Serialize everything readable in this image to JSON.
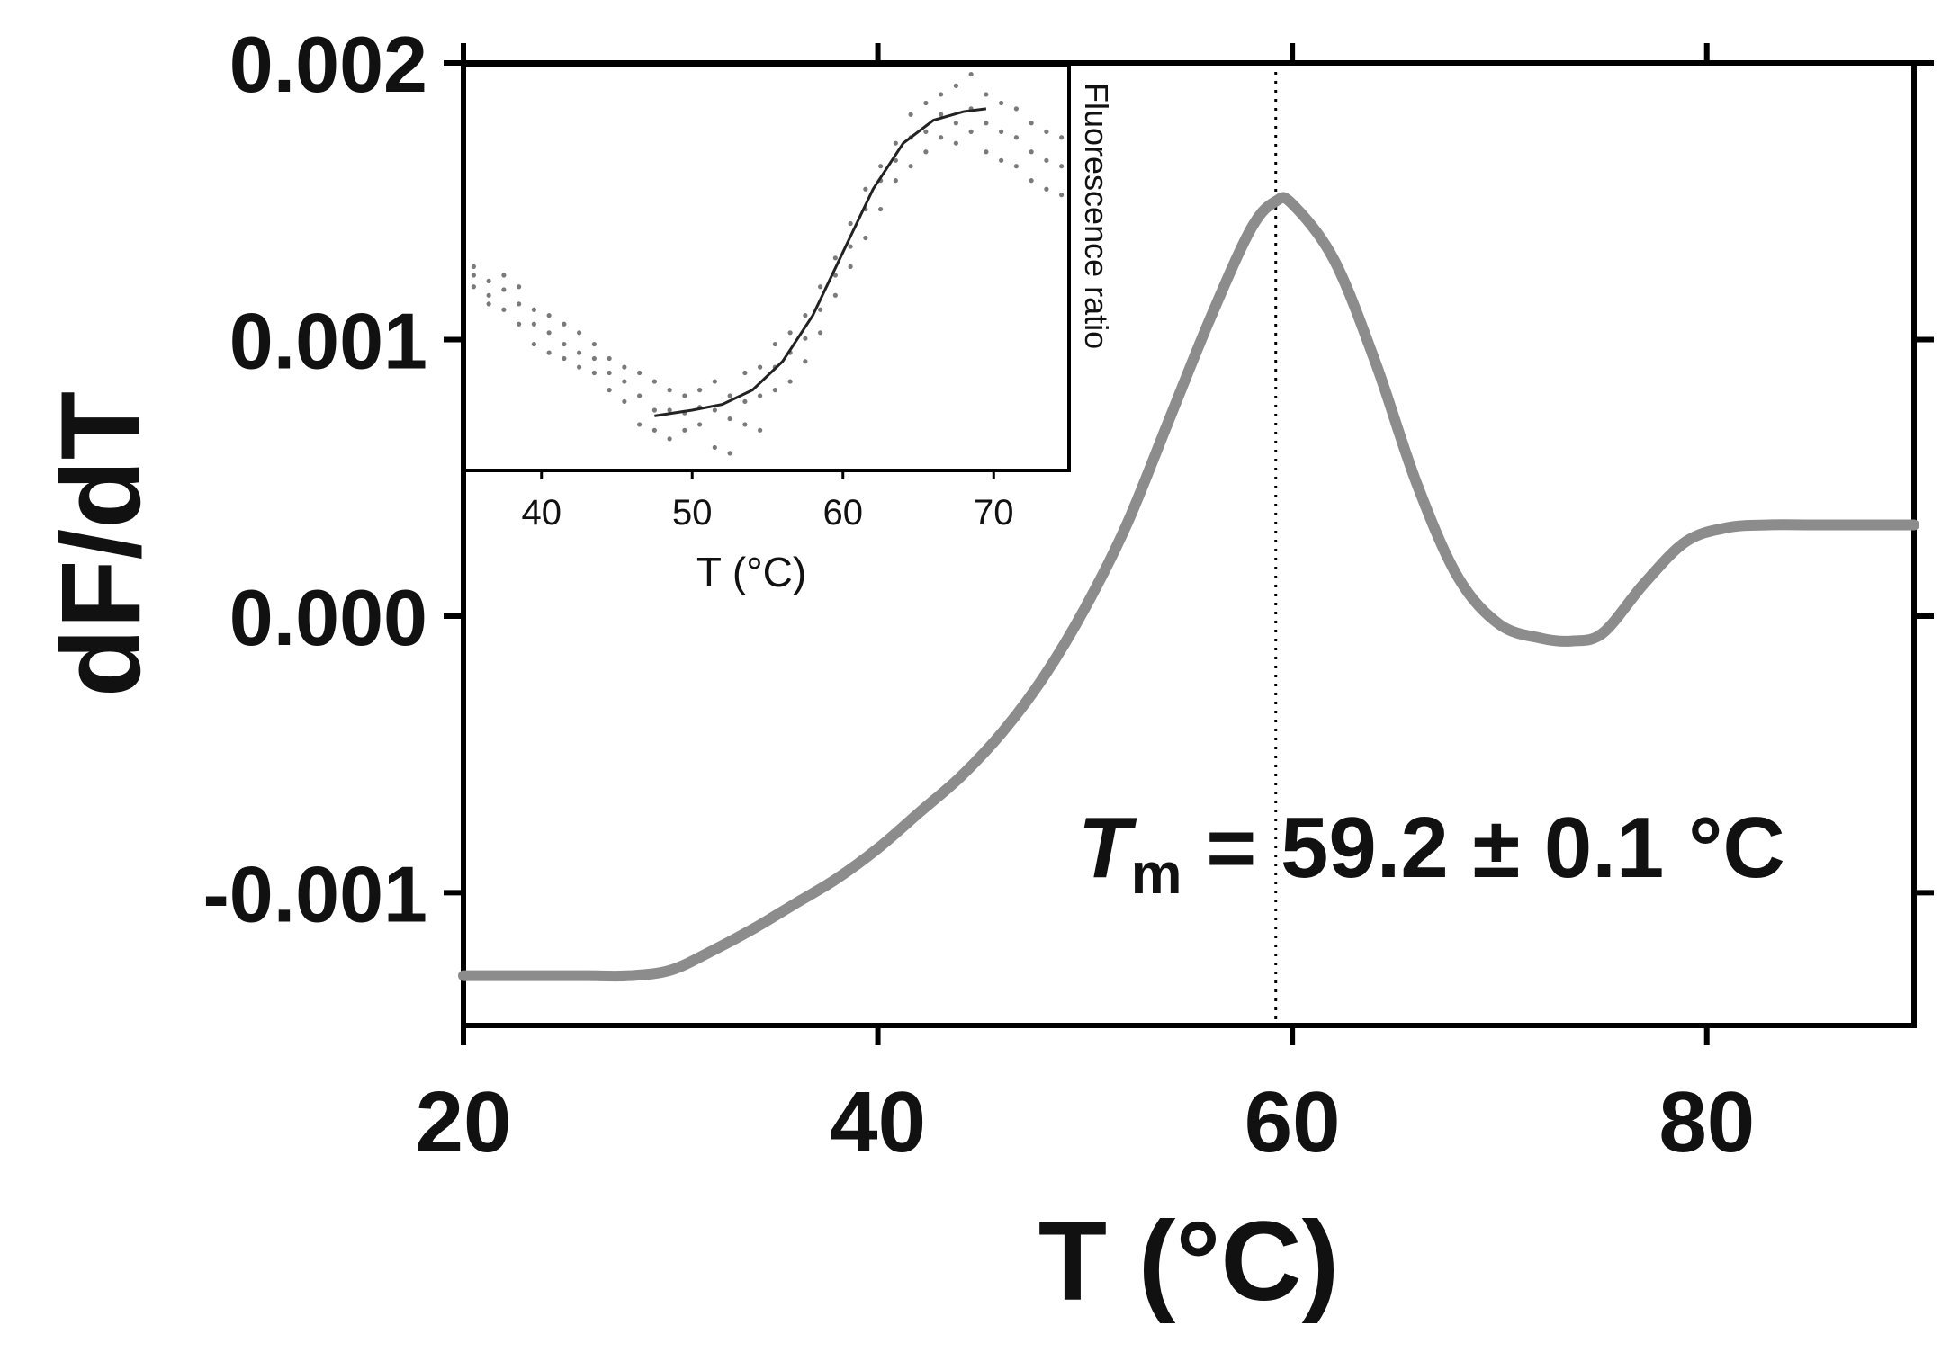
{
  "chart_data": [
    {
      "type": "line",
      "role": "main",
      "xlabel": "T (°C)",
      "ylabel": "dF/dT",
      "xlim": [
        20,
        90
      ],
      "ylim": [
        -0.00148,
        0.002
      ],
      "xticks": [
        20,
        40,
        60,
        80
      ],
      "xtick_labels": [
        "20",
        "40",
        "60",
        "80"
      ],
      "yticks": [
        0.002,
        0.001,
        0.0,
        -0.001
      ],
      "ytick_labels": [
        "0.002",
        "0.001",
        "0.000",
        "-0.001"
      ],
      "grid": false,
      "series": [
        {
          "color": "#8c8c8c",
          "x": [
            20,
            22,
            24,
            26,
            28,
            30,
            32,
            34,
            36,
            38,
            40,
            42,
            44,
            46,
            48,
            50,
            52,
            54,
            56,
            58,
            59.2,
            60,
            62,
            64,
            66,
            68,
            70,
            72,
            73.5,
            75,
            77,
            79,
            81,
            83,
            85,
            87,
            90
          ],
          "y": [
            -0.0013,
            -0.0013,
            -0.0013,
            -0.0013,
            -0.0013,
            -0.00128,
            -0.00121,
            -0.00113,
            -0.00104,
            -0.00095,
            -0.00084,
            -0.00071,
            -0.00058,
            -0.00042,
            -0.00022,
            3e-05,
            0.00033,
            0.0007,
            0.00107,
            0.0014,
            0.0015,
            0.00149,
            0.00129,
            0.00092,
            0.00048,
            0.00014,
            -3e-05,
            -8e-05,
            -9e-05,
            -6e-05,
            0.00012,
            0.00027,
            0.00032,
            0.00033,
            0.00033,
            0.00033,
            0.00033
          ]
        }
      ],
      "annotations": [
        {
          "type": "vline",
          "x": 59.2,
          "style": "dotted",
          "color": "#000000"
        },
        {
          "type": "text",
          "symbol": "T",
          "subscript": "m",
          "text": " = 59.2 ± 0.1 °C"
        }
      ]
    },
    {
      "type": "scatter",
      "role": "inset",
      "xlabel": "T (°C)",
      "ylabel": "Fluorescence ratio",
      "ylabel_position": "right",
      "xlim": [
        35,
        75
      ],
      "ylim": [
        0.54,
        1.95
      ],
      "xticks": [
        40,
        50,
        60,
        70
      ],
      "xtick_labels": [
        "40",
        "50",
        "60",
        "70"
      ],
      "yticks_labeled": false,
      "colors": {
        "points": "#7a7a7a",
        "fit": "#222222"
      },
      "series": [
        {
          "kind": "points",
          "points": [
            [
              35.5,
              1.22
            ],
            [
              35.5,
              1.18
            ],
            [
              35.5,
              1.25
            ],
            [
              36.5,
              1.15
            ],
            [
              36.5,
              1.2
            ],
            [
              36.5,
              1.12
            ],
            [
              37.5,
              1.1
            ],
            [
              37.5,
              1.17
            ],
            [
              37.5,
              1.22
            ],
            [
              38.5,
              1.05
            ],
            [
              38.5,
              1.12
            ],
            [
              38.5,
              1.18
            ],
            [
              39.5,
              1.05
            ],
            [
              39.5,
              1.1
            ],
            [
              39.5,
              0.98
            ],
            [
              40.5,
              0.95
            ],
            [
              40.5,
              1.02
            ],
            [
              40.5,
              1.08
            ],
            [
              41.5,
              0.93
            ],
            [
              41.5,
              0.98
            ],
            [
              41.5,
              1.05
            ],
            [
              42.5,
              0.9
            ],
            [
              42.5,
              0.95
            ],
            [
              42.5,
              1.02
            ],
            [
              43.5,
              0.88
            ],
            [
              43.5,
              0.93
            ],
            [
              43.5,
              0.98
            ],
            [
              44.5,
              0.82
            ],
            [
              44.5,
              0.88
            ],
            [
              44.5,
              0.93
            ],
            [
              45.5,
              0.78
            ],
            [
              45.5,
              0.85
            ],
            [
              45.5,
              0.9
            ],
            [
              46.5,
              0.7
            ],
            [
              46.5,
              0.8
            ],
            [
              46.5,
              0.88
            ],
            [
              47.5,
              0.68
            ],
            [
              47.5,
              0.75
            ],
            [
              47.5,
              0.85
            ],
            [
              48.5,
              0.65
            ],
            [
              48.5,
              0.75
            ],
            [
              48.5,
              0.82
            ],
            [
              49.5,
              0.68
            ],
            [
              49.5,
              0.74
            ],
            [
              49.5,
              0.8
            ],
            [
              50.5,
              0.7
            ],
            [
              50.5,
              0.76
            ],
            [
              50.5,
              0.82
            ],
            [
              51.5,
              0.62
            ],
            [
              51.5,
              0.75
            ],
            [
              51.5,
              0.85
            ],
            [
              52.5,
              0.6
            ],
            [
              52.5,
              0.72
            ],
            [
              52.5,
              0.8
            ],
            [
              53.5,
              0.7
            ],
            [
              53.5,
              0.78
            ],
            [
              53.5,
              0.88
            ],
            [
              54.5,
              0.68
            ],
            [
              54.5,
              0.8
            ],
            [
              54.5,
              0.9
            ],
            [
              55.5,
              0.82
            ],
            [
              55.5,
              0.9
            ],
            [
              55.5,
              0.98
            ],
            [
              56.5,
              0.85
            ],
            [
              56.5,
              0.95
            ],
            [
              56.5,
              1.02
            ],
            [
              57.5,
              0.92
            ],
            [
              57.5,
              1.0
            ],
            [
              57.5,
              1.08
            ],
            [
              58.5,
              1.02
            ],
            [
              58.5,
              1.1
            ],
            [
              58.5,
              1.18
            ],
            [
              59.5,
              1.15
            ],
            [
              59.5,
              1.22
            ],
            [
              59.5,
              1.28
            ],
            [
              60.5,
              1.25
            ],
            [
              60.5,
              1.32
            ],
            [
              60.5,
              1.4
            ],
            [
              61.5,
              1.35
            ],
            [
              61.5,
              1.45
            ],
            [
              61.5,
              1.52
            ],
            [
              62.5,
              1.45
            ],
            [
              62.5,
              1.55
            ],
            [
              62.5,
              1.6
            ],
            [
              63.5,
              1.55
            ],
            [
              63.5,
              1.62
            ],
            [
              63.5,
              1.68
            ],
            [
              64.5,
              1.6
            ],
            [
              64.5,
              1.7
            ],
            [
              64.5,
              1.78
            ],
            [
              65.5,
              1.65
            ],
            [
              65.5,
              1.72
            ],
            [
              65.5,
              1.82
            ],
            [
              66.5,
              1.7
            ],
            [
              66.5,
              1.78
            ],
            [
              66.5,
              1.85
            ],
            [
              67.5,
              1.68
            ],
            [
              67.5,
              1.75
            ],
            [
              67.5,
              1.88
            ],
            [
              68.5,
              1.72
            ],
            [
              68.5,
              1.8
            ],
            [
              68.5,
              1.92
            ],
            [
              69.5,
              1.65
            ],
            [
              69.5,
              1.75
            ],
            [
              69.5,
              1.85
            ],
            [
              70.5,
              1.62
            ],
            [
              70.5,
              1.72
            ],
            [
              70.5,
              1.82
            ],
            [
              71.5,
              1.6
            ],
            [
              71.5,
              1.7
            ],
            [
              71.5,
              1.8
            ],
            [
              72.5,
              1.55
            ],
            [
              72.5,
              1.65
            ],
            [
              72.5,
              1.75
            ],
            [
              73.5,
              1.52
            ],
            [
              73.5,
              1.62
            ],
            [
              73.5,
              1.72
            ],
            [
              74.5,
              1.5
            ],
            [
              74.5,
              1.6
            ],
            [
              74.5,
              1.7
            ]
          ]
        },
        {
          "kind": "fit",
          "x": [
            47.5,
            50,
            52,
            54,
            56,
            58,
            60,
            62,
            64,
            66,
            68,
            69.5
          ],
          "y": [
            0.73,
            0.75,
            0.77,
            0.82,
            0.92,
            1.08,
            1.3,
            1.52,
            1.68,
            1.76,
            1.79,
            1.8
          ]
        }
      ]
    }
  ]
}
